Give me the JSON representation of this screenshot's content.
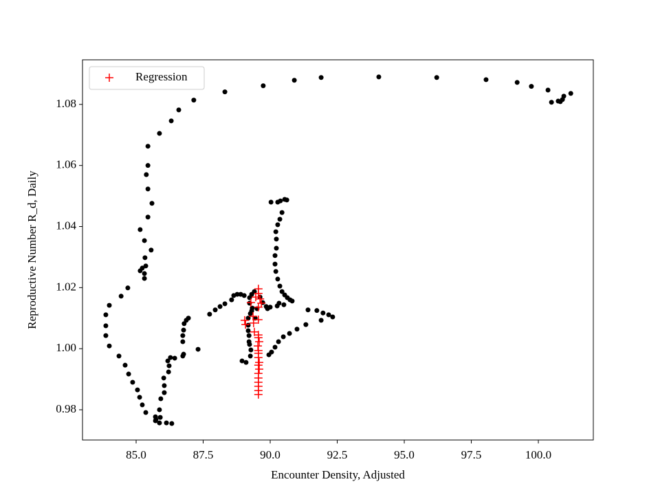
{
  "chart_data": {
    "type": "scatter",
    "xlabel": "Encounter Density, Adjusted",
    "ylabel": "Reproductive Number R_d, Daily",
    "xlim": [
      83.0,
      102.05
    ],
    "ylim": [
      0.9701,
      1.0946
    ],
    "xticks": [
      {
        "value": 85,
        "label": "85.0"
      },
      87.5,
      {
        "value": 90,
        "label": "90.0"
      },
      92.5,
      {
        "value": 95,
        "label": "95.0"
      },
      97.5,
      {
        "value": 100,
        "label": "100.0"
      }
    ],
    "yticks": [
      0.98,
      {
        "value": 1,
        "label": "1.00"
      },
      1.02,
      1.04,
      1.06,
      1.08
    ],
    "grid": false,
    "legend": "upper left",
    "series": [
      {
        "color": "#000000",
        "marker": "o",
        "x": [
          101.21,
          100.95,
          100.9,
          100.82,
          100.74,
          100.49,
          100.36,
          99.74,
          99.21,
          98.05,
          96.21,
          94.05,
          91.9,
          90.9,
          89.74,
          88.31,
          87.15,
          86.59,
          86.31,
          85.87,
          85.44,
          85.44,
          85.38,
          85.44,
          85.59,
          85.44,
          85.31,
          85.15,
          85.56,
          85.33,
          85.36,
          85.23,
          85.31,
          85.31,
          85.15,
          84.69,
          84.44,
          84.0,
          83.87,
          83.87,
          83.87,
          84.0,
          84.36,
          84.59,
          84.72,
          84.87,
          85.05,
          85.13,
          85.23,
          85.36,
          85.72,
          85.72,
          85.87,
          86.13,
          86.33,
          85.87,
          85.9,
          85.74,
          85.92,
          86.05,
          86.05,
          86.03,
          86.21,
          86.23,
          86.18,
          86.28,
          86.44,
          86.74,
          86.77,
          87.31,
          86.74,
          86.74,
          86.77,
          86.79,
          86.87,
          86.95,
          87.74,
          87.95,
          88.13,
          88.31,
          88.56,
          88.64,
          88.77,
          88.9,
          89.03,
          89.23,
          89.31,
          89.41,
          89.62,
          89.72,
          89.85,
          90.0,
          90.26,
          90.51,
          91.41,
          91.74,
          91.97,
          92.18,
          92.33,
          91.9,
          91.33,
          91.0,
          90.72,
          90.49,
          90.31,
          90.18,
          90.05,
          89.95,
          90.03,
          90.28,
          90.38,
          90.54,
          90.62,
          90.44,
          90.36,
          90.28,
          90.21,
          90.23,
          90.23,
          90.18,
          90.18,
          90.21,
          90.28,
          90.36,
          90.44,
          90.54,
          90.64,
          90.74,
          90.82,
          90.33,
          89.9,
          89.51,
          89.33,
          89.26,
          89.18,
          89.18,
          89.18,
          89.21,
          89.21,
          89.23,
          89.28,
          89.26,
          89.1,
          88.95,
          89.31,
          89.44,
          89.23
        ],
        "values": [
          1.0836,
          1.0827,
          1.0816,
          1.0809,
          1.0811,
          1.0807,
          1.0847,
          1.0859,
          1.0872,
          1.0881,
          1.0888,
          1.089,
          1.0888,
          1.0879,
          1.0861,
          1.0841,
          1.0814,
          1.0782,
          1.0746,
          1.0705,
          1.0663,
          1.06,
          1.057,
          1.0523,
          1.0476,
          1.0431,
          1.0354,
          1.039,
          1.0323,
          1.0298,
          1.0271,
          1.0264,
          1.0246,
          1.023,
          1.0255,
          1.0199,
          1.0172,
          1.0142,
          1.0111,
          1.0075,
          1.0043,
          1.0009,
          0.9976,
          0.9946,
          0.9917,
          0.989,
          0.9865,
          0.9841,
          0.9816,
          0.9791,
          0.9777,
          0.9764,
          0.9757,
          0.9757,
          0.9755,
          0.98,
          0.9775,
          0.9768,
          0.9836,
          0.9856,
          0.9879,
          0.9904,
          0.9924,
          0.9944,
          0.996,
          0.9971,
          0.9969,
          0.9976,
          0.9982,
          0.9998,
          1.0023,
          1.0043,
          1.0061,
          1.0082,
          1.0093,
          1.01,
          1.0113,
          1.0127,
          1.0138,
          1.0147,
          1.016,
          1.0174,
          1.0178,
          1.0178,
          1.0174,
          1.0167,
          1.0178,
          1.0187,
          1.0169,
          1.0151,
          1.0138,
          1.0136,
          1.014,
          1.0144,
          1.0127,
          1.0125,
          1.0117,
          1.0111,
          1.0104,
          1.0093,
          1.0079,
          1.0064,
          1.005,
          1.0039,
          1.0023,
          1.0005,
          0.9989,
          0.998,
          1.048,
          1.048,
          1.0484,
          1.0489,
          1.0487,
          1.0446,
          1.0424,
          1.0406,
          1.0383,
          1.0359,
          1.0329,
          1.0305,
          1.0277,
          1.0253,
          1.0228,
          1.0205,
          1.0187,
          1.0176,
          1.0167,
          1.016,
          1.0156,
          1.0149,
          1.0131,
          1.0131,
          1.0133,
          1.0115,
          1.01,
          1.0077,
          1.0059,
          1.0043,
          1.0023,
          1.0014,
          0.9996,
          0.9976,
          0.9955,
          0.996,
          1.0124,
          1.01,
          1.0149
        ]
      },
      {
        "name": "Regression",
        "color": "#ff0000",
        "marker": "+",
        "x": [
          89.56,
          89.56,
          89.62,
          89.67,
          89.56,
          89.05,
          89.08,
          89.56,
          89.56,
          89.56,
          89.59,
          89.54,
          89.56,
          89.56,
          89.56,
          89.59,
          89.56,
          89.59,
          89.56,
          89.56,
          89.56,
          89.56,
          89.56,
          89.56,
          89.36,
          89.38,
          89.41,
          89.28,
          89.46
        ],
        "values": [
          1.0196,
          1.0181,
          1.0163,
          1.0149,
          1.0136,
          1.0093,
          1.0079,
          1.0095,
          1.0045,
          1.0036,
          1.0023,
          1.0009,
          0.9994,
          0.9985,
          0.9971,
          0.9955,
          0.9946,
          0.9933,
          0.9919,
          0.9904,
          0.989,
          0.9877,
          0.9863,
          0.985,
          1.0106,
          1.0084,
          1.0055,
          1.0151,
          1.0169
        ]
      }
    ]
  }
}
